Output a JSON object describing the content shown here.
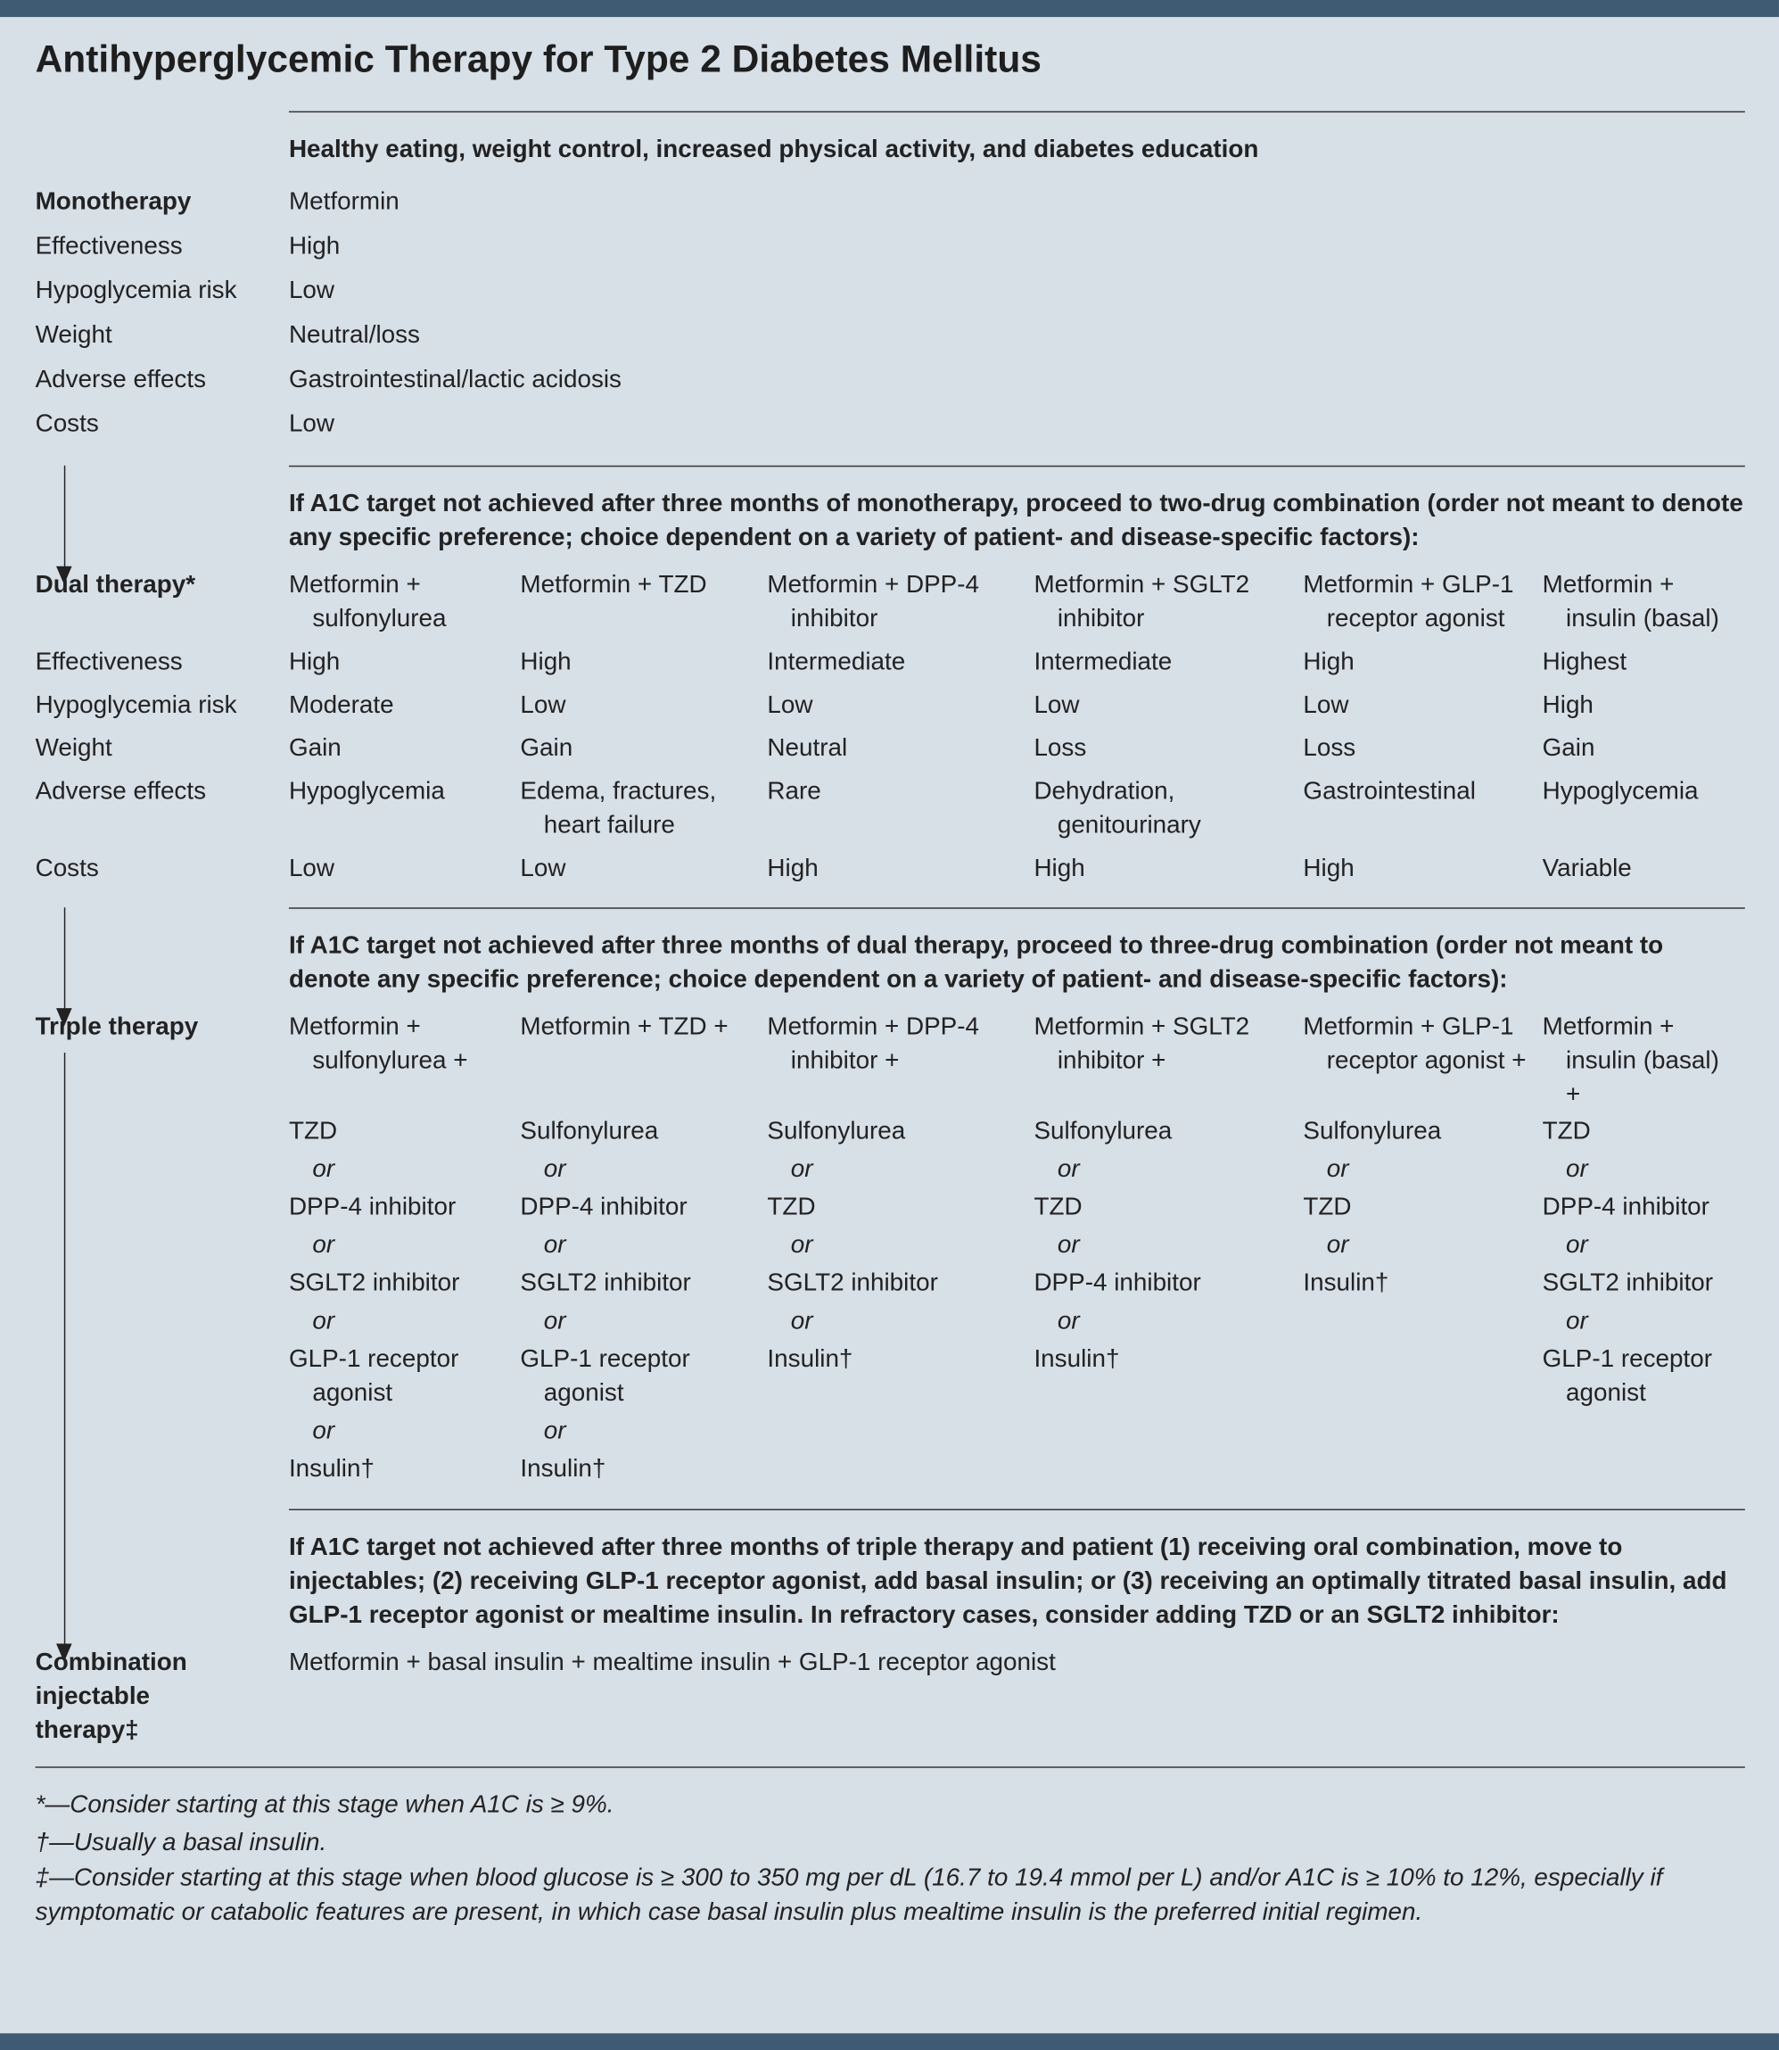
{
  "title": "Antihyperglycemic Therapy for Type 2 Diabetes Mellitus",
  "lifestyle": "Healthy eating, weight control, increased physical activity, and diabetes education",
  "monotherapy": {
    "label": "Monotherapy",
    "drug": "Metformin",
    "rows": [
      {
        "label": "Effectiveness",
        "value": "High"
      },
      {
        "label": "Hypoglycemia risk",
        "value": "Low"
      },
      {
        "label": "Weight",
        "value": "Neutral/loss"
      },
      {
        "label": "Adverse effects",
        "value": "Gastrointestinal/lactic acidosis"
      },
      {
        "label": "Costs",
        "value": "Low"
      }
    ]
  },
  "step_to_dual": "If A1C target not achieved after three months of monotherapy, proceed to two-drug combination (order not meant to denote any specific preference; choice dependent on a variety of patient- and disease-specific factors):",
  "dual_therapy": {
    "label": "Dual therapy*",
    "options": [
      [
        "Metformin +",
        "sulfonylurea"
      ],
      [
        "Metformin +",
        "TZD"
      ],
      [
        "Metformin +",
        "DPP-4 inhibitor"
      ],
      [
        "Metformin +",
        "SGLT2 inhibitor"
      ],
      [
        "Metformin +",
        "GLP-1 receptor agonist"
      ],
      [
        "Metformin +",
        "insulin (basal)"
      ]
    ],
    "rows": [
      {
        "label": "Effectiveness",
        "values": [
          "High",
          "High",
          "Intermediate",
          "Intermediate",
          "High",
          "Highest"
        ]
      },
      {
        "label": "Hypoglycemia risk",
        "values": [
          "Moderate",
          "Low",
          "Low",
          "Low",
          "Low",
          "High"
        ]
      },
      {
        "label": "Weight",
        "values": [
          "Gain",
          "Gain",
          "Neutral",
          "Loss",
          "Loss",
          "Gain"
        ]
      },
      {
        "label": "Adverse effects",
        "values": [
          "Hypoglycemia",
          "Edema, fractures, heart failure",
          "Rare",
          "Dehydration, genitourinary",
          "Gastrointestinal",
          "Hypoglycemia"
        ]
      },
      {
        "label": "Costs",
        "values": [
          "Low",
          "Low",
          "High",
          "High",
          "High",
          "Variable"
        ]
      }
    ]
  },
  "step_to_triple": "If A1C target not achieved after three months of dual therapy, proceed to three-drug combination (order not meant to denote any specific preference; choice dependent on a variety of patient- and disease-specific factors):",
  "triple_therapy": {
    "label": "Triple therapy",
    "connector": "or",
    "options": [
      [
        "Metformin +",
        "sulfonylurea +"
      ],
      [
        "Metformin +",
        "TZD +"
      ],
      [
        "Metformin +",
        "DPP-4 inhibitor +"
      ],
      [
        "Metformin +",
        "SGLT2 inhibitor +"
      ],
      [
        "Metformin +",
        "GLP-1 receptor agonist +"
      ],
      [
        "Metformin +",
        "insulin (basal) +"
      ]
    ],
    "additions": [
      [
        "TZD",
        "DPP-4 inhibitor",
        "SGLT2 inhibitor",
        "GLP-1 receptor agonist",
        "Insulin†"
      ],
      [
        "Sulfonylurea",
        "DPP-4 inhibitor",
        "SGLT2 inhibitor",
        "GLP-1 receptor agonist",
        "Insulin†"
      ],
      [
        "Sulfonylurea",
        "TZD",
        "SGLT2 inhibitor",
        "Insulin†"
      ],
      [
        "Sulfonylurea",
        "TZD",
        "DPP-4 inhibitor",
        "Insulin†"
      ],
      [
        "Sulfonylurea",
        "TZD",
        "Insulin†"
      ],
      [
        "TZD",
        "DPP-4 inhibitor",
        "SGLT2 inhibitor",
        "GLP-1 receptor agonist"
      ]
    ]
  },
  "step_to_injectable": "If A1C target not achieved after three months of triple therapy and patient (1) receiving oral combination, move to injectables; (2) receiving GLP-1 receptor agonist, add basal insulin; or (3) receiving an optimally titrated basal insulin, add GLP-1 receptor agonist or mealtime insulin. In refractory cases, consider adding TZD or an SGLT2 inhibitor:",
  "combination_injectable": {
    "label": "Combination injectable therapy‡",
    "regimen": "Metformin + basal insulin + mealtime insulin + GLP-1 receptor agonist"
  },
  "footnotes": [
    "*—Consider starting at this stage when A1C is ≥ 9%.",
    "†—Usually a basal insulin.",
    "‡—Consider starting at this stage when blood glucose is ≥ 300 to 350 mg per dL (16.7 to 19.4 mmol per L) and/or A1C is ≥ 10% to 12%, especially if symptomatic or catabolic features are present, in which case basal insulin plus mealtime insulin is the preferred initial regimen."
  ]
}
